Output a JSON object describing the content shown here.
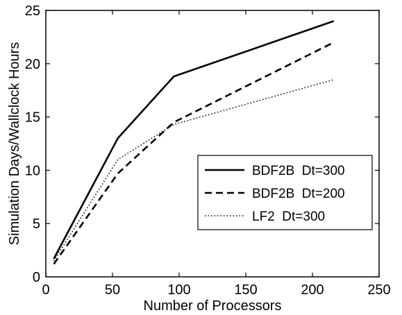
{
  "chart_data": {
    "type": "line",
    "xlabel": "Number of Processors",
    "ylabel": "Simulation Days/Wallclock Hours",
    "xlim": [
      0,
      250
    ],
    "ylim": [
      0,
      25
    ],
    "x_ticks": [
      "0",
      "50",
      "100",
      "150",
      "200",
      "250"
    ],
    "y_ticks": [
      "0",
      "5",
      "10",
      "15",
      "20",
      "25"
    ],
    "grid": false,
    "legend_position": "center-right",
    "series": [
      {
        "name": "BDF2B  Dt=300",
        "style": "solid",
        "color": "#000000",
        "x": [
          6,
          54,
          96,
          216
        ],
        "y": [
          1.7,
          13.0,
          18.8,
          24.0
        ]
      },
      {
        "name": "BDF2B  Dt=200",
        "style": "dashed",
        "color": "#000000",
        "x": [
          6,
          54,
          96,
          216
        ],
        "y": [
          1.2,
          9.7,
          14.5,
          22.0
        ]
      },
      {
        "name": "LF2  Dt=300",
        "style": "dotted",
        "color": "#000000",
        "x": [
          6,
          54,
          96,
          216
        ],
        "y": [
          1.5,
          11.0,
          14.3,
          18.5
        ]
      }
    ]
  }
}
